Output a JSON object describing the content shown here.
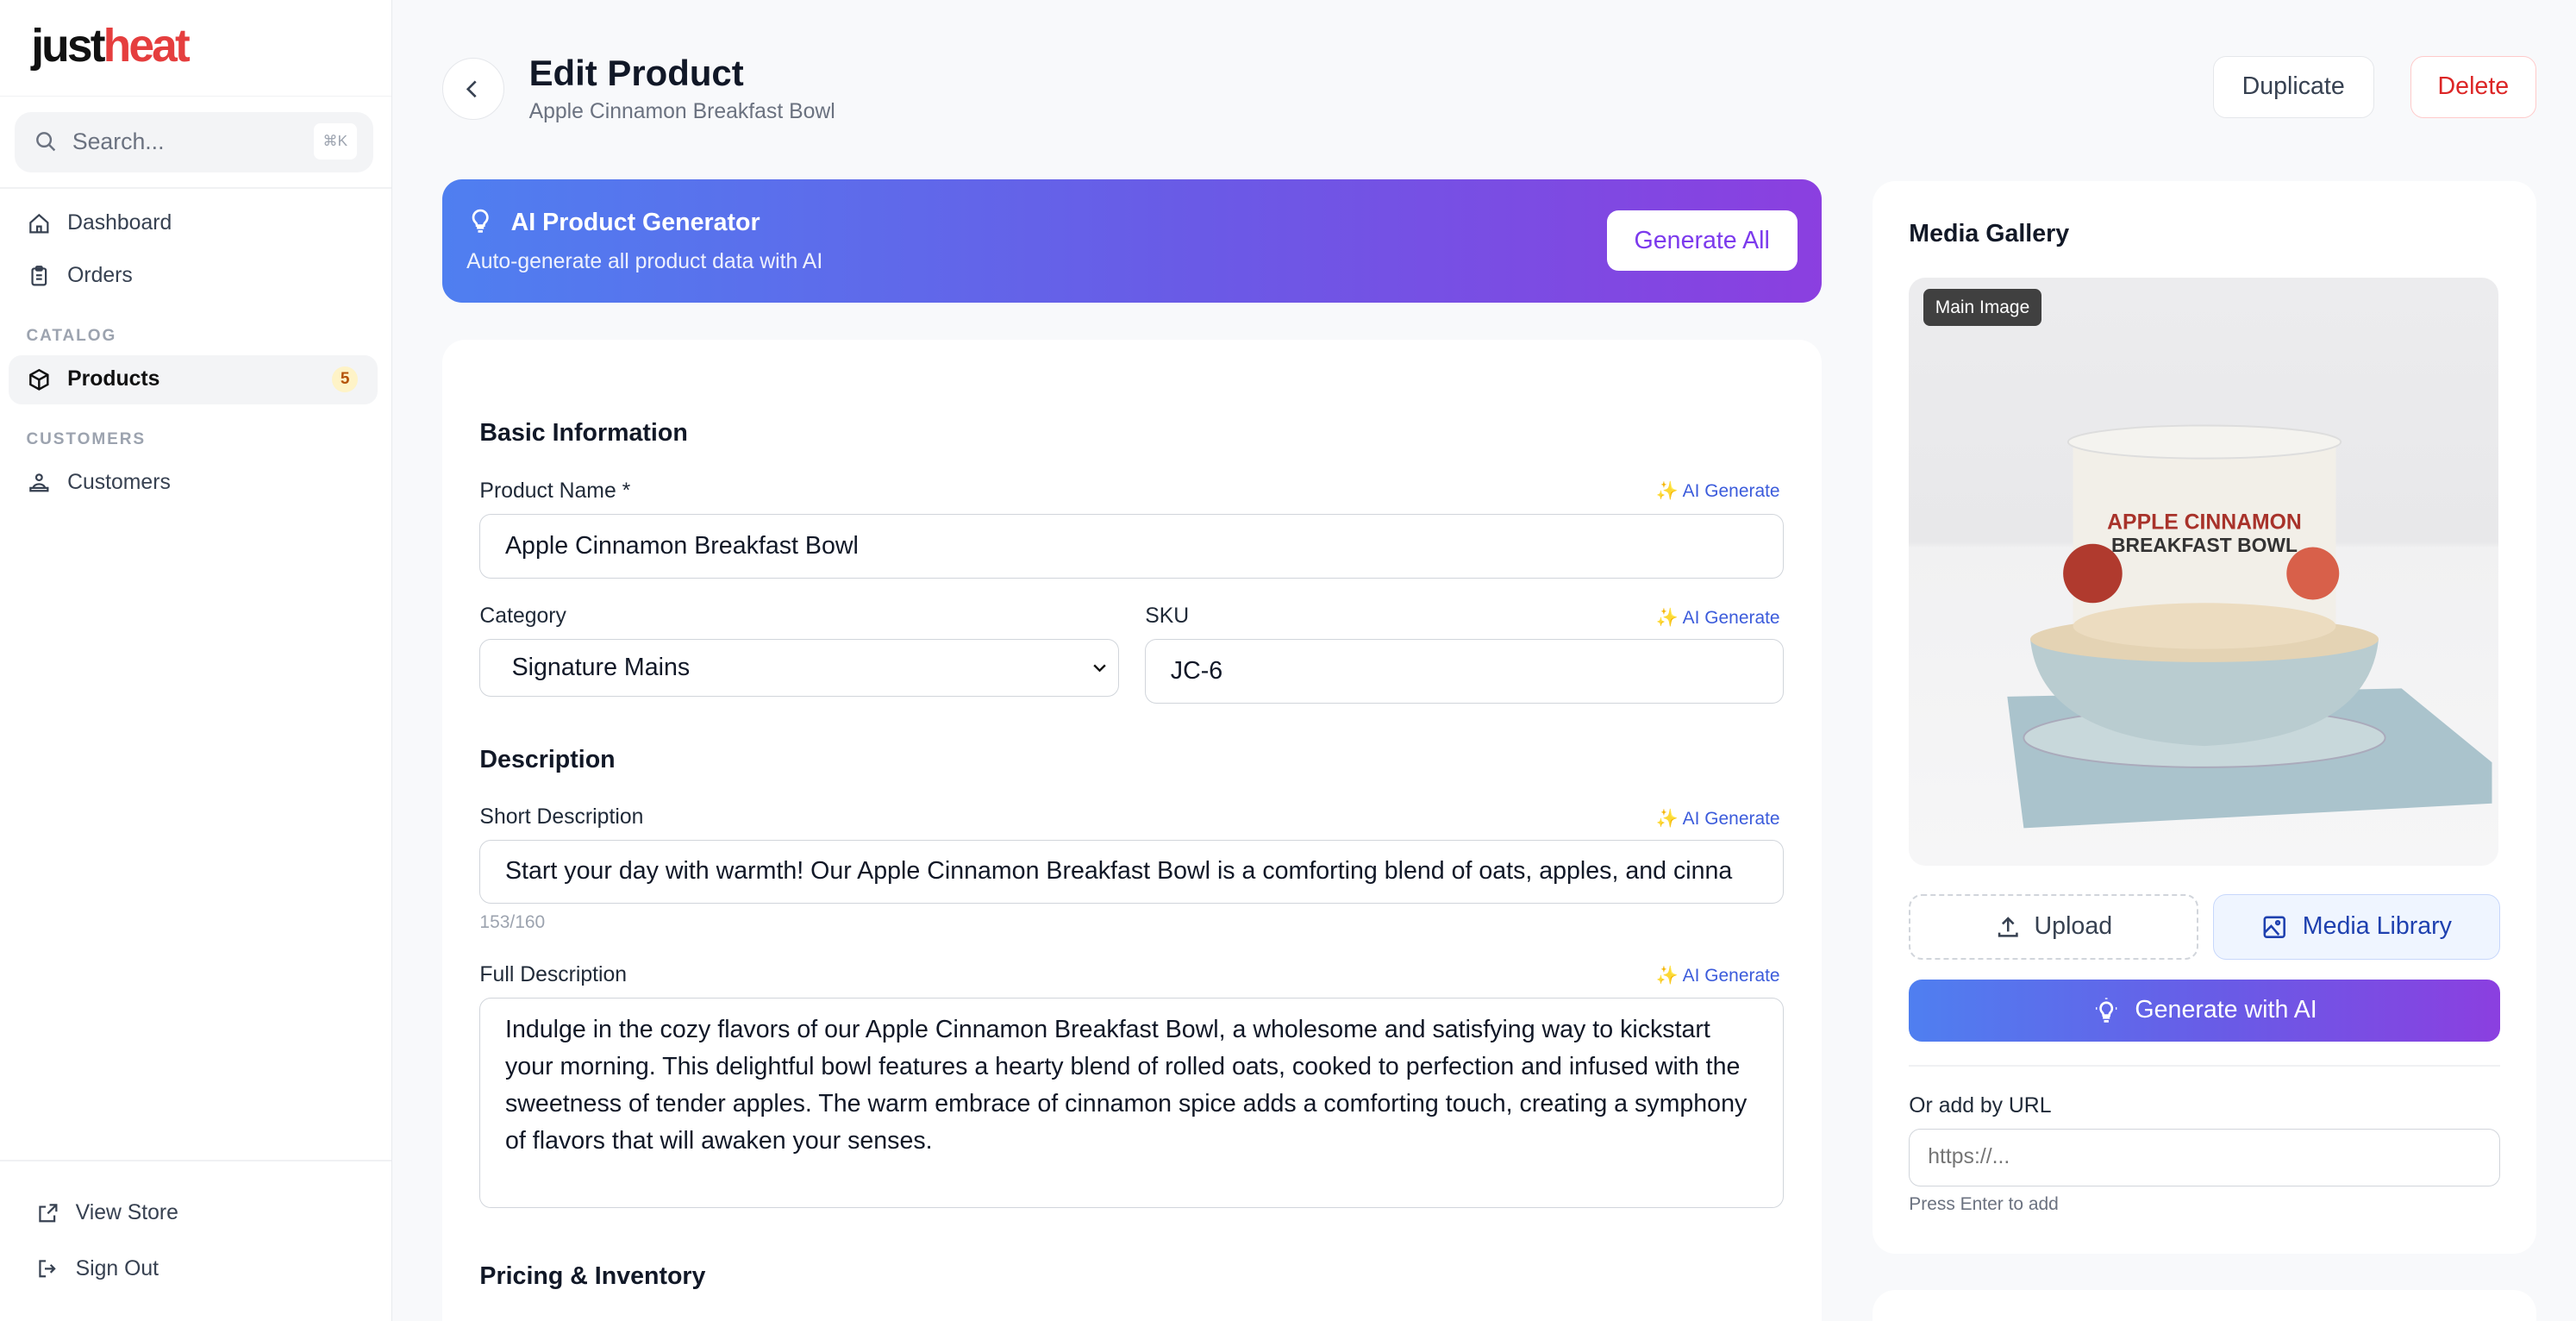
{
  "brand": {
    "logo_text_part1": "just",
    "logo_text_part2": "heat",
    "accent": "#e53e3e"
  },
  "sidebar": {
    "search_placeholder": "Search...",
    "search_shortcut": "⌘K",
    "items": [
      {
        "label": "Dashboard",
        "icon": "home-icon"
      },
      {
        "label": "Orders",
        "icon": "clipboard-icon"
      }
    ],
    "sections": [
      {
        "title": "CATALOG",
        "items": [
          {
            "label": "Products",
            "icon": "cube-icon",
            "badge": "5",
            "active": true
          }
        ]
      },
      {
        "title": "CUSTOMERS",
        "items": [
          {
            "label": "Customers",
            "icon": "users-icon"
          }
        ]
      }
    ],
    "footer": [
      {
        "label": "View Store",
        "icon": "external-link-icon"
      },
      {
        "label": "Sign Out",
        "icon": "sign-out-icon"
      }
    ]
  },
  "header": {
    "title": "Edit Product",
    "subtitle": "Apple Cinnamon Breakfast Bowl",
    "duplicate_label": "Duplicate",
    "delete_label": "Delete",
    "delete_color": "#dc2626"
  },
  "ai_banner": {
    "title": "AI Product Generator",
    "subtitle": "Auto-generate all product data with AI",
    "button": "Generate All",
    "gradient": [
      "#4f7ff0",
      "#8b3fe0"
    ]
  },
  "form": {
    "ai_generate_label": "✨ AI Generate",
    "basic": {
      "title": "Basic Information",
      "name_label": "Product Name *",
      "name_value": "Apple Cinnamon Breakfast Bowl",
      "category_label": "Category",
      "category_value": "Signature Mains",
      "sku_label": "SKU",
      "sku_value": "JC-6"
    },
    "description": {
      "title": "Description",
      "short_label": "Short Description",
      "short_value": "Start your day with warmth! Our Apple Cinnamon Breakfast Bowl is a comforting blend of oats, apples, and cinna",
      "short_counter": "153/160",
      "full_label": "Full Description",
      "full_value": "Indulge in the cozy flavors of our Apple Cinnamon Breakfast Bowl, a wholesome and satisfying way to kickstart your morning. This delightful bowl features a hearty blend of rolled oats, cooked to perfection and infused with the sweetness of tender apples. The warm embrace of cinnamon spice adds a comforting touch, creating a symphony of flavors that will awaken your senses."
    },
    "pricing": {
      "title": "Pricing & Inventory"
    }
  },
  "media": {
    "title": "Media Gallery",
    "main_tag": "Main Image",
    "image_label_line1": "APPLE CINNAMON",
    "image_label_line2": "BREAKFAST BOWL",
    "upload_label": "Upload",
    "library_label": "Media Library",
    "generate_label": "Generate with AI",
    "url_label": "Or add by URL",
    "url_placeholder": "https://...",
    "url_hint": "Press Enter to add"
  }
}
